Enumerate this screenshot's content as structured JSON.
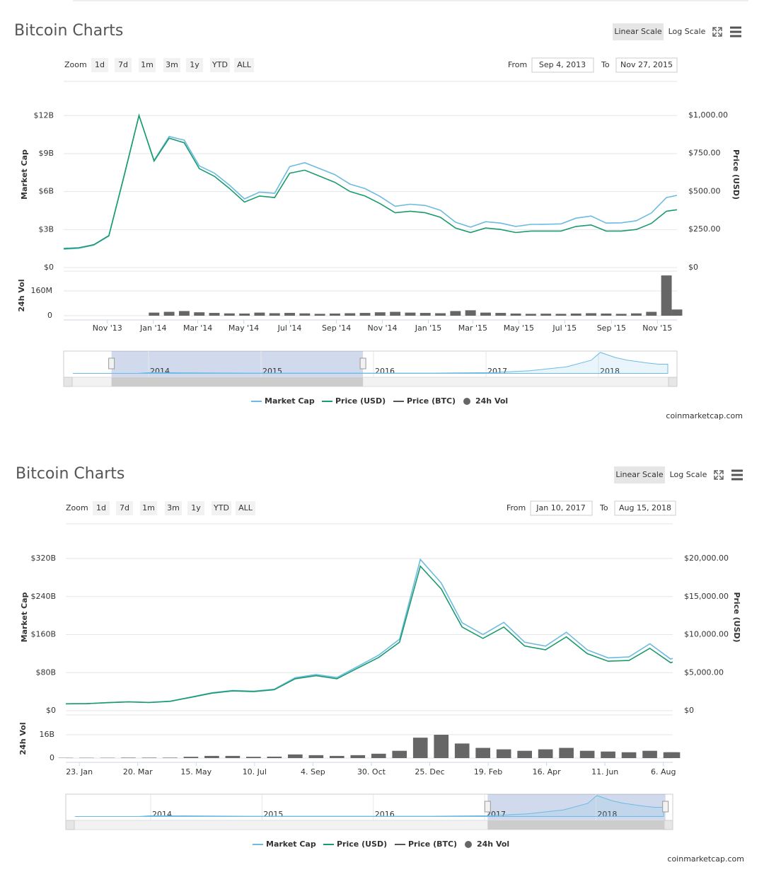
{
  "chart_data": [
    {
      "type": "line",
      "title": "Bitcoin Charts",
      "buttons": [
        "Linear Scale",
        "Log Scale"
      ],
      "zoom_label": "Zoom",
      "zoom_options": [
        "1d",
        "7d",
        "1m",
        "3m",
        "1y",
        "YTD",
        "ALL"
      ],
      "range": {
        "from_label": "From",
        "from": "Sep 4, 2013",
        "to_label": "To",
        "to": "Nov 27, 2015"
      },
      "ylabel": "Market Cap",
      "y2label": "Price (USD)",
      "vol_label": "24h Vol",
      "x": [
        0,
        20,
        40,
        60,
        80,
        100,
        120,
        140,
        160,
        180,
        200,
        220,
        240,
        260,
        280,
        300,
        320,
        340,
        360,
        380,
        400,
        420,
        440,
        460,
        480,
        500,
        520,
        540,
        560,
        580,
        600,
        620,
        640,
        660,
        680,
        700,
        720,
        740,
        760,
        780,
        800,
        814
      ],
      "xlim": [
        0,
        814
      ],
      "xticks": [
        {
          "value": 58,
          "label": "Nov '13"
        },
        {
          "value": 119,
          "label": "Jan '14"
        },
        {
          "value": 178,
          "label": "Mar '14"
        },
        {
          "value": 239,
          "label": "May '14"
        },
        {
          "value": 300,
          "label": "Jul '14"
        },
        {
          "value": 362,
          "label": "Sep '14"
        },
        {
          "value": 423,
          "label": "Nov '14"
        },
        {
          "value": 484,
          "label": "Jan '15"
        },
        {
          "value": 543,
          "label": "Mar '15"
        },
        {
          "value": 604,
          "label": "May '15"
        },
        {
          "value": 665,
          "label": "Jul '15"
        },
        {
          "value": 727,
          "label": "Sep '15"
        },
        {
          "value": 788,
          "label": "Nov '15"
        }
      ],
      "ylim": [
        0,
        14.7
      ],
      "yticks": [
        {
          "value": 0,
          "label": "$0"
        },
        {
          "value": 3,
          "label": "$3B"
        },
        {
          "value": 6,
          "label": "$6B"
        },
        {
          "value": 9,
          "label": "$9B"
        },
        {
          "value": 12,
          "label": "$12B"
        }
      ],
      "y2lim": [
        0,
        1223
      ],
      "y2ticks": [
        {
          "value": 0,
          "label": "$0"
        },
        {
          "value": 250,
          "label": "$250.00"
        },
        {
          "value": 500,
          "label": "$500.00"
        },
        {
          "value": 750,
          "label": "$750.00"
        },
        {
          "value": 1000,
          "label": "$1,000.00"
        }
      ],
      "vol_ylim": [
        0,
        288
      ],
      "vol_yticks": [
        0,
        {
          "value": 160,
          "label": "160M"
        }
      ],
      "grid": true,
      "series": [
        {
          "name": "Market Cap",
          "color": "#6cbbe3",
          "values": [
            1.45,
            1.52,
            1.77,
            2.49,
            7.16,
            12.0,
            8.47,
            10.35,
            10.06,
            8.03,
            7.46,
            6.51,
            5.42,
            5.96,
            5.87,
            7.97,
            8.28,
            7.81,
            7.34,
            6.59,
            6.24,
            5.61,
            4.84,
            5.0,
            4.9,
            4.52,
            3.58,
            3.19,
            3.62,
            3.51,
            3.25,
            3.41,
            3.42,
            3.45,
            3.9,
            4.07,
            3.51,
            3.53,
            3.7,
            4.31,
            5.53,
            5.7
          ]
        },
        {
          "name": "Price (USD)",
          "color": "#1a9b6d",
          "axis": "y2",
          "values": [
            125,
            130,
            150,
            210,
            600,
            1000,
            700,
            850,
            820,
            650,
            600,
            520,
            430,
            470,
            460,
            620,
            640,
            600,
            560,
            500,
            470,
            420,
            360,
            370,
            360,
            330,
            260,
            230,
            260,
            250,
            230,
            240,
            240,
            240,
            270,
            280,
            240,
            240,
            250,
            290,
            370,
            380
          ]
        },
        {
          "name": "Price (BTC)",
          "color": "#555555",
          "visible": false
        },
        {
          "name": "24h Vol",
          "color": "#666666",
          "axis": "vol",
          "kind": "bar",
          "values": [
            0,
            0,
            0,
            0,
            0,
            0,
            20,
            25,
            30,
            22,
            18,
            15,
            14,
            20,
            16,
            18,
            15,
            12,
            14,
            16,
            18,
            22,
            25,
            20,
            18,
            16,
            30,
            35,
            20,
            18,
            14,
            12,
            13,
            12,
            14,
            16,
            14,
            12,
            15,
            25,
            260,
            40
          ]
        }
      ],
      "navigator": [
        "2014",
        "2015",
        "2016",
        "2017",
        "2018"
      ],
      "credit": "coinmarketcap.com"
    },
    {
      "type": "line",
      "title": "Bitcoin Charts",
      "buttons": [
        "Linear Scale",
        "Log Scale"
      ],
      "zoom_label": "Zoom",
      "zoom_options": [
        "1d",
        "7d",
        "1m",
        "3m",
        "1y",
        "YTD",
        "ALL"
      ],
      "range": {
        "from_label": "From",
        "from": "Jan 10, 2017",
        "to_label": "To",
        "to": "Aug 15, 2018"
      },
      "ylabel": "Market Cap",
      "y2label": "Price (USD)",
      "vol_label": "24h Vol",
      "x": [
        0,
        20,
        40,
        60,
        80,
        100,
        120,
        140,
        160,
        180,
        200,
        220,
        240,
        260,
        280,
        300,
        320,
        340,
        360,
        380,
        400,
        420,
        440,
        460,
        480,
        500,
        520,
        540,
        560,
        580,
        582
      ],
      "xlim": [
        0,
        582
      ],
      "xticks": [
        {
          "value": 13,
          "label": "23. Jan"
        },
        {
          "value": 69,
          "label": "20. Mar"
        },
        {
          "value": 125,
          "label": "15. May"
        },
        {
          "value": 181,
          "label": "10. Jul"
        },
        {
          "value": 237,
          "label": "4. Sep"
        },
        {
          "value": 293,
          "label": "30. Oct"
        },
        {
          "value": 349,
          "label": "25. Dec"
        },
        {
          "value": 405,
          "label": "19. Feb"
        },
        {
          "value": 461,
          "label": "16. Apr"
        },
        {
          "value": 517,
          "label": "11. Jun"
        },
        {
          "value": 573,
          "label": "6. Aug"
        }
      ],
      "ylim": [
        0,
        393
      ],
      "yticks": [
        {
          "value": 0,
          "label": "$0"
        },
        {
          "value": 80,
          "label": "$80B"
        },
        {
          "value": 160,
          "label": "$160B"
        },
        {
          "value": 240,
          "label": "$240B"
        },
        {
          "value": 320,
          "label": "$320B"
        }
      ],
      "y2lim": [
        0,
        24560
      ],
      "y2ticks": [
        {
          "value": 0,
          "label": "$0"
        },
        {
          "value": 5000,
          "label": "$5,000.00"
        },
        {
          "value": 10000,
          "label": "$10,000.00"
        },
        {
          "value": 15000,
          "label": "$15,000.00"
        },
        {
          "value": 20000,
          "label": "$20,000.00"
        }
      ],
      "vol_ylim": [
        0,
        29.6
      ],
      "vol_yticks": [
        0,
        {
          "value": 16,
          "label": "16B"
        }
      ],
      "grid": true,
      "series": [
        {
          "name": "Market Cap",
          "color": "#6cbbe3",
          "values": [
            14.5,
            14.8,
            17.0,
            18.6,
            17.4,
            20.0,
            28.6,
            37.6,
            42.6,
            41.1,
            45.3,
            69.4,
            76.1,
            69.7,
            93.1,
            116.7,
            150.3,
            318.1,
            268.5,
            185.0,
            160.2,
            185.8,
            143.9,
            135.8,
            165.0,
            127.8,
            111.0,
            113.0,
            140.7,
            108.4,
            110.1
          ]
        },
        {
          "name": "Price (USD)",
          "color": "#1a9b6d",
          "axis": "y2",
          "values": [
            900,
            920,
            1050,
            1150,
            1070,
            1230,
            1750,
            2300,
            2600,
            2500,
            2750,
            4200,
            4600,
            4200,
            5600,
            7000,
            9000,
            19000,
            16000,
            11000,
            9500,
            11000,
            8500,
            8000,
            9700,
            7500,
            6500,
            6600,
            8200,
            6300,
            6400
          ]
        },
        {
          "name": "Price (BTC)",
          "color": "#555555",
          "visible": false
        },
        {
          "name": "24h Vol",
          "color": "#666666",
          "axis": "vol",
          "kind": "bar",
          "values": [
            0.2,
            0.2,
            0.2,
            0.3,
            0.3,
            0.3,
            0.9,
            1.5,
            1.5,
            0.9,
            1.0,
            2.5,
            2.0,
            1.5,
            2.0,
            3.0,
            5.0,
            14,
            16,
            10,
            7,
            6,
            5,
            6,
            7,
            5,
            4.5,
            4,
            5,
            4,
            4
          ]
        }
      ],
      "navigator": [
        "2014",
        "2015",
        "2016",
        "2017",
        "2018"
      ],
      "credit": "coinmarketcap.com"
    }
  ]
}
